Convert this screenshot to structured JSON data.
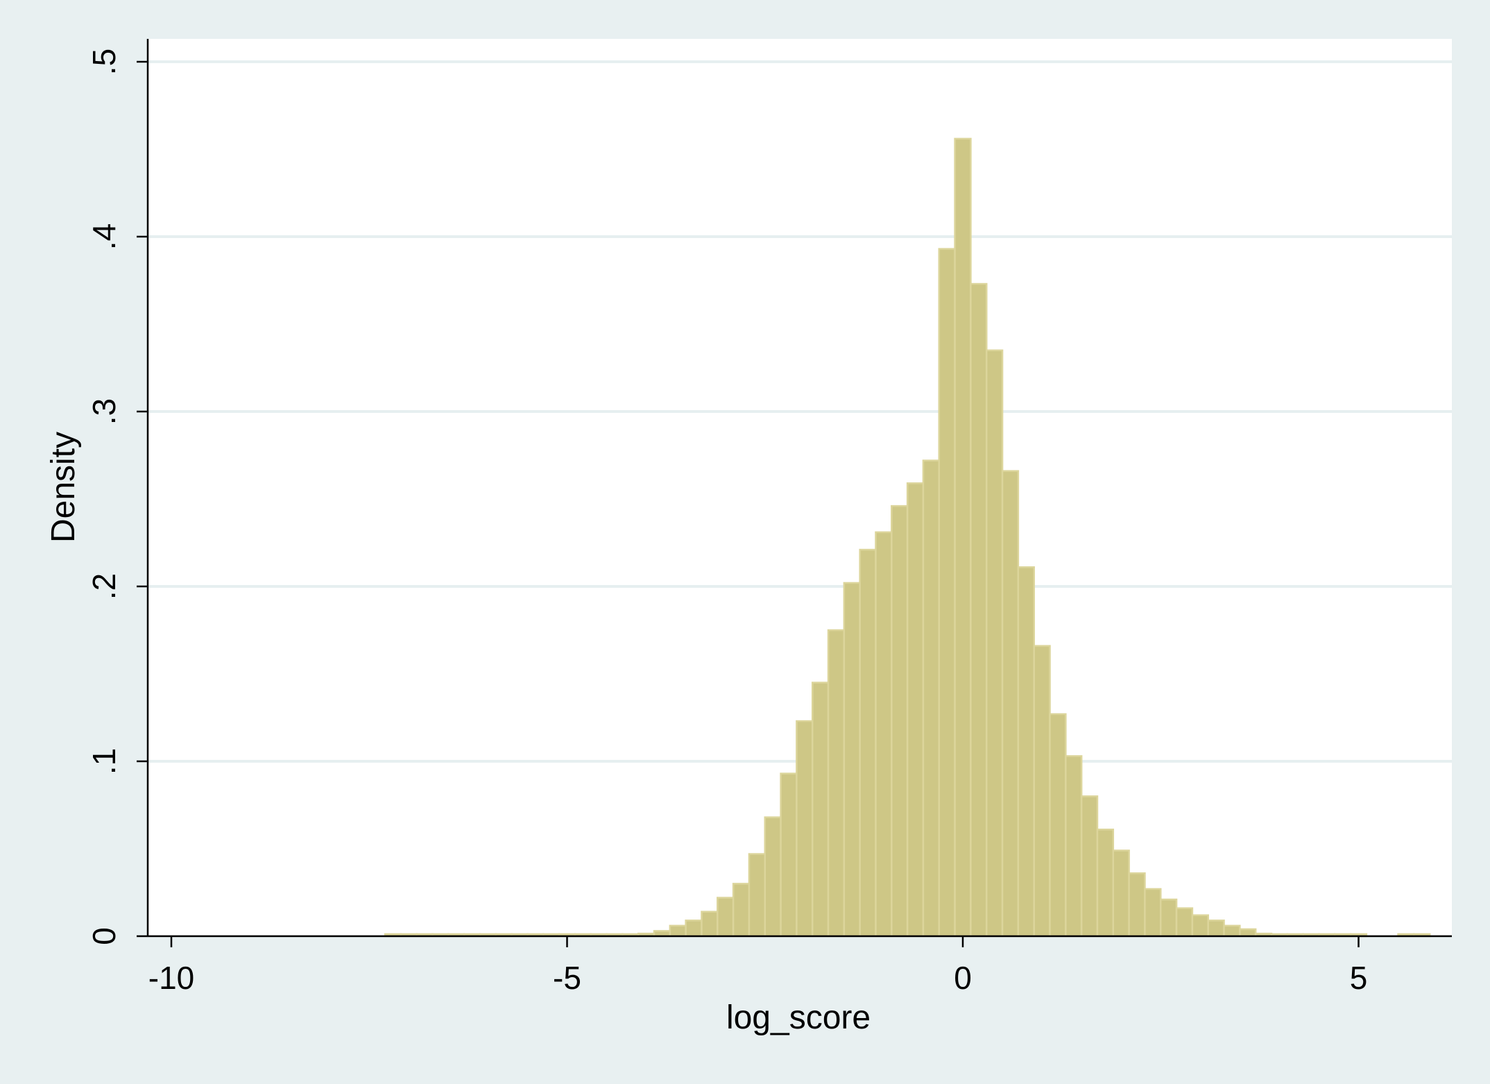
{
  "chart_data": {
    "type": "bar",
    "subtype": "histogram",
    "xlabel": "log_score",
    "ylabel": "Density",
    "xlim": [
      -10.3,
      6.2
    ],
    "ylim": [
      0,
      0.5
    ],
    "x_ticks": [
      {
        "value": -10,
        "label": "-10"
      },
      {
        "value": -5,
        "label": "-5"
      },
      {
        "value": 0,
        "label": "0"
      },
      {
        "value": 5,
        "label": "5"
      }
    ],
    "y_ticks": [
      {
        "value": 0,
        "label": "0"
      },
      {
        "value": 0.1,
        "label": ".1"
      },
      {
        "value": 0.2,
        "label": ".2"
      },
      {
        "value": 0.3,
        "label": ".3"
      },
      {
        "value": 0.4,
        "label": ".4"
      },
      {
        "value": 0.5,
        "label": ".5"
      }
    ],
    "grid": "horizontal",
    "colors": {
      "bar_fill": "#cec786",
      "bar_edge": "#dcd59b",
      "background": "#e8f0f1",
      "plot_background": "#ffffff",
      "gridline": "#e6eff0",
      "axis": "#000000"
    },
    "bin_width": 0.2,
    "bins": [
      {
        "x0": -7.3,
        "y": 0.0012
      },
      {
        "x0": -7.1,
        "y": 0.0012
      },
      {
        "x0": -6.9,
        "y": 0.0012
      },
      {
        "x0": -6.7,
        "y": 0.0012
      },
      {
        "x0": -6.5,
        "y": 0.0012
      },
      {
        "x0": -6.3,
        "y": 0.0012
      },
      {
        "x0": -6.1,
        "y": 0.0012
      },
      {
        "x0": -5.9,
        "y": 0.0012
      },
      {
        "x0": -5.7,
        "y": 0.0012
      },
      {
        "x0": -5.5,
        "y": 0.0012
      },
      {
        "x0": -5.3,
        "y": 0.0012
      },
      {
        "x0": -5.1,
        "y": 0.0012
      },
      {
        "x0": -4.9,
        "y": 0.0012
      },
      {
        "x0": -4.7,
        "y": 0.0012
      },
      {
        "x0": -4.5,
        "y": 0.0012
      },
      {
        "x0": -4.3,
        "y": 0.0012
      },
      {
        "x0": -4.1,
        "y": 0.0015
      },
      {
        "x0": -3.9,
        "y": 0.003
      },
      {
        "x0": -3.7,
        "y": 0.006
      },
      {
        "x0": -3.5,
        "y": 0.009
      },
      {
        "x0": -3.3,
        "y": 0.014
      },
      {
        "x0": -3.1,
        "y": 0.022
      },
      {
        "x0": -2.9,
        "y": 0.03
      },
      {
        "x0": -2.7,
        "y": 0.047
      },
      {
        "x0": -2.5,
        "y": 0.068
      },
      {
        "x0": -2.3,
        "y": 0.093
      },
      {
        "x0": -2.1,
        "y": 0.123
      },
      {
        "x0": -1.9,
        "y": 0.145
      },
      {
        "x0": -1.7,
        "y": 0.175
      },
      {
        "x0": -1.5,
        "y": 0.202
      },
      {
        "x0": -1.3,
        "y": 0.221
      },
      {
        "x0": -1.1,
        "y": 0.231
      },
      {
        "x0": -0.9,
        "y": 0.246
      },
      {
        "x0": -0.7,
        "y": 0.259
      },
      {
        "x0": -0.5,
        "y": 0.272
      },
      {
        "x0": -0.3,
        "y": 0.393
      },
      {
        "x0": -0.1,
        "y": 0.456
      },
      {
        "x0": 0.1,
        "y": 0.373
      },
      {
        "x0": 0.3,
        "y": 0.335
      },
      {
        "x0": 0.5,
        "y": 0.266
      },
      {
        "x0": 0.7,
        "y": 0.211
      },
      {
        "x0": 0.9,
        "y": 0.166
      },
      {
        "x0": 1.1,
        "y": 0.127
      },
      {
        "x0": 1.3,
        "y": 0.103
      },
      {
        "x0": 1.5,
        "y": 0.08
      },
      {
        "x0": 1.7,
        "y": 0.061
      },
      {
        "x0": 1.9,
        "y": 0.049
      },
      {
        "x0": 2.1,
        "y": 0.036
      },
      {
        "x0": 2.3,
        "y": 0.027
      },
      {
        "x0": 2.5,
        "y": 0.021
      },
      {
        "x0": 2.7,
        "y": 0.016
      },
      {
        "x0": 2.9,
        "y": 0.012
      },
      {
        "x0": 3.1,
        "y": 0.009
      },
      {
        "x0": 3.3,
        "y": 0.006
      },
      {
        "x0": 3.5,
        "y": 0.004
      },
      {
        "x0": 3.7,
        "y": 0.0015
      },
      {
        "x0": 3.9,
        "y": 0.0012
      },
      {
        "x0": 4.1,
        "y": 0.0012
      },
      {
        "x0": 4.3,
        "y": 0.0012
      },
      {
        "x0": 4.5,
        "y": 0.0012
      },
      {
        "x0": 4.7,
        "y": 0.0012
      },
      {
        "x0": 4.9,
        "y": 0.0012
      },
      {
        "x0": 5.5,
        "y": 0.0012
      },
      {
        "x0": 5.7,
        "y": 0.0012
      }
    ]
  }
}
